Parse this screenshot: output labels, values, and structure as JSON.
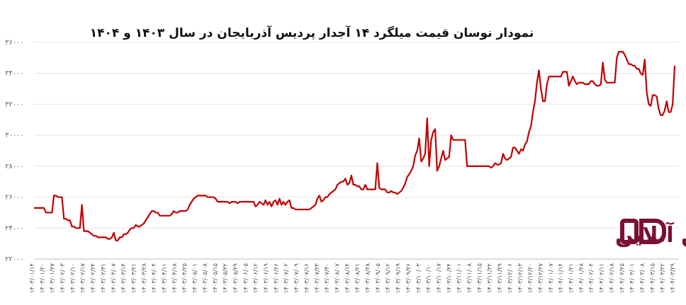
{
  "chart_data": {
    "type": "line",
    "title": "نمودار نوسان قیمت میلگرد ۱۴ آجدار پردیس آذربایجان در سال ۱۴۰۳ و ۱۴۰۴",
    "xlabel": "",
    "ylabel": "",
    "ylim": [
      22000,
      36000
    ],
    "yticks": [
      "۲۲۰۰۰",
      "۲۴۰۰۰",
      "۲۶۰۰۰",
      "۲۸۰۰۰",
      "۳۰۰۰۰",
      "۳۲۰۰۰",
      "۳۴۰۰۰",
      "۳۶۰۰۰"
    ],
    "ytick_values": [
      22000,
      24000,
      26000,
      28000,
      30000,
      32000,
      34000,
      36000
    ],
    "grid": true,
    "line_color": "#c00000",
    "xticks": [
      "۱۴۰۳/۰۱/۱۴",
      "۱۴۰۳/۰۱/۲۰",
      "۱۴۰۳/۰۱/۲۷",
      "۱۴۰۳/۰۲/۰۳",
      "۱۴۰۳/۰۲/۱۰",
      "۱۴۰۳/۰۲/۱۷",
      "۱۴۰۳/۰۲/۲۴",
      "۱۴۰۳/۰۲/۳۱",
      "۱۴۰۳/۰۳/۰۷",
      "۱۴۰۳/۰۳/۱۴",
      "۱۴۰۳/۰۳/۲۱",
      "۱۴۰۳/۰۳/۲۸",
      "۱۴۰۳/۰۴/۰۴",
      "۱۴۰۳/۰۴/۱۱",
      "۱۴۰۳/۰۴/۱۸",
      "۱۴۰۳/۰۴/۲۵",
      "۱۴۰۳/۰۵/۰۱",
      "۱۴۰۳/۰۵/۰۸",
      "۱۴۰۳/۰۵/۱۵",
      "۱۴۰۳/۰۵/۲۲",
      "۱۴۰۳/۰۵/۲۹",
      "۱۴۰۳/۰۶/۰۵",
      "۱۴۰۳/۰۶/۱۲",
      "۱۴۰۳/۰۶/۱۹",
      "۱۴۰۳/۰۶/۲۶",
      "۱۴۰۳/۰۷/۰۲",
      "۱۴۰۳/۰۷/۰۹",
      "۱۴۰۳/۰۷/۱۶",
      "۱۴۰۳/۰۷/۲۳",
      "۱۴۰۳/۰۷/۳۰",
      "۱۴۰۳/۰۸/۰۷",
      "۱۴۰۳/۰۸/۱۴",
      "۱۴۰۳/۰۸/۲۱",
      "۱۴۰۳/۰۸/۲۸",
      "۱۴۰۳/۰۹/۰۵",
      "۱۴۰۳/۰۹/۱۲",
      "۱۴۰۳/۰۹/۱۹",
      "۱۴۰۳/۰۹/۲۶",
      "۱۴۰۳/۱۰/۰۳",
      "۱۴۰۳/۱۰/۱۰",
      "۱۴۰۳/۱۰/۱۷",
      "۱۴۰۳/۱۰/۲۴",
      "۱۴۰۳/۱۱/۰۱",
      "۱۴۰۳/۱۱/۰۸",
      "۱۴۰۳/۱۱/۱۵",
      "۱۴۰۳/۱۱/۲۲",
      "۱۴۰۳/۱۱/۲۹",
      "۱۴۰۳/۱۲/۰۶",
      "۱۴۰۳/۱۲/۱۳",
      "۱۴۰۳/۱۲/۲۰",
      "۱۴۰۳/۱۲/۲۷",
      "۱۴۰۴/۰۱/۰۷",
      "۱۴۰۴/۰۱/۱۴",
      "۱۴۰۴/۰۱/۲۱",
      "۱۴۰۴/۰۱/۲۸",
      "۱۴۰۴/۰۲/۰۴",
      "۱۴۰۴/۰۲/۱۱",
      "۱۴۰۴/۰۲/۱۸",
      "۱۴۰۴/۰۲/۲۵",
      "۱۴۰۴/۰۳/۰۱",
      "۱۴۰۴/۰۳/۰۸",
      "۱۴۰۴/۰۳/۱۵",
      "۱۴۰۴/۰۳/۲۲",
      "۱۴۰۴/۰۳/۲۹"
    ],
    "values": [
      25300,
      25300,
      25300,
      25300,
      25300,
      25300,
      25000,
      25000,
      25000,
      25000,
      26100,
      26100,
      26000,
      26000,
      26000,
      24600,
      24600,
      24500,
      24500,
      24100,
      24100,
      24000,
      24000,
      24000,
      25500,
      23800,
      23800,
      23800,
      23700,
      23600,
      23500,
      23500,
      23400,
      23400,
      23400,
      23400,
      23400,
      23300,
      23300,
      23400,
      23700,
      23200,
      23200,
      23400,
      23400,
      23600,
      23600,
      23700,
      23900,
      24000,
      24000,
      24200,
      24100,
      24100,
      24200,
      24300,
      24500,
      24700,
      24900,
      25100,
      25100,
      25000,
      25000,
      24800,
      24800,
      24800,
      24800,
      24800,
      24800,
      24900,
      25100,
      25000,
      25000,
      25100,
      25100,
      25100,
      25100,
      25200,
      25500,
      25700,
      25900,
      26000,
      26100,
      26100,
      26100,
      26100,
      26100,
      26000,
      26000,
      26000,
      26000,
      25900,
      25700,
      25700,
      25700,
      25700,
      25700,
      25700,
      25600,
      25700,
      25700,
      25700,
      25600,
      25700,
      25700,
      25700,
      25700,
      25700,
      25700,
      25700,
      25700,
      25400,
      25500,
      25700,
      25600,
      25500,
      25800,
      25500,
      25700,
      25400,
      25700,
      25800,
      25500,
      25900,
      25500,
      25700,
      25500,
      25700,
      25800,
      25300,
      25300,
      25200,
      25200,
      25200,
      25200,
      25200,
      25200,
      25200,
      25200,
      25300,
      25400,
      25500,
      25900,
      26100,
      25700,
      25800,
      26000,
      26000,
      26200,
      26300,
      26400,
      26500,
      26800,
      26900,
      27000,
      27000,
      27200,
      26800,
      26900,
      27400,
      26800,
      26800,
      26700,
      26700,
      26500,
      26500,
      26800,
      26500,
      26500,
      26500,
      26500,
      26500,
      28200,
      26600,
      26500,
      26500,
      26500,
      26300,
      26300,
      26400,
      26300,
      26300,
      26200,
      26300,
      26400,
      26600,
      26900,
      27300,
      27500,
      27700,
      28000,
      28700,
      29000,
      29800,
      28300,
      28500,
      28800,
      31100,
      28000,
      29700,
      30200,
      30400,
      27700,
      28000,
      28500,
      29000,
      28400,
      28500,
      28600,
      30000,
      29700,
      29700,
      29700,
      29700,
      29700,
      29700,
      29700,
      28000,
      28000,
      28000,
      28000,
      28000,
      28000,
      28000,
      28000,
      28000,
      28000,
      28000,
      28000,
      27900,
      28000,
      28200,
      28100,
      28100,
      28200,
      28800,
      28500,
      28400,
      28500,
      28600,
      29200,
      29200,
      29000,
      28800,
      29100,
      29000,
      29400,
      29600,
      30200,
      30600,
      31500,
      32200,
      33400,
      34200,
      33000,
      32200,
      32200,
      33300,
      33800,
      33800,
      33800,
      33800,
      33800,
      33800,
      33800,
      34100,
      34100,
      34100,
      33200,
      33500,
      33800,
      33500,
      33300,
      33400,
      33400,
      33400,
      33300,
      33300,
      33300,
      33500,
      33500,
      33300,
      33200,
      33200,
      33300,
      34700,
      33600,
      33400,
      33400,
      33400,
      33400,
      33400,
      35000,
      35400,
      35400,
      35400,
      35200,
      34900,
      34600,
      34600,
      34500,
      34500,
      34300,
      34300,
      34000,
      33900,
      34900,
      32800,
      32000,
      31900,
      32600,
      32600,
      32500,
      31700,
      31300,
      31300,
      31600,
      32200,
      31500,
      31500,
      32000,
      34500
    ]
  },
  "logo": {
    "text": "آهن آنلاین",
    "mark_color": "#7a1034"
  }
}
